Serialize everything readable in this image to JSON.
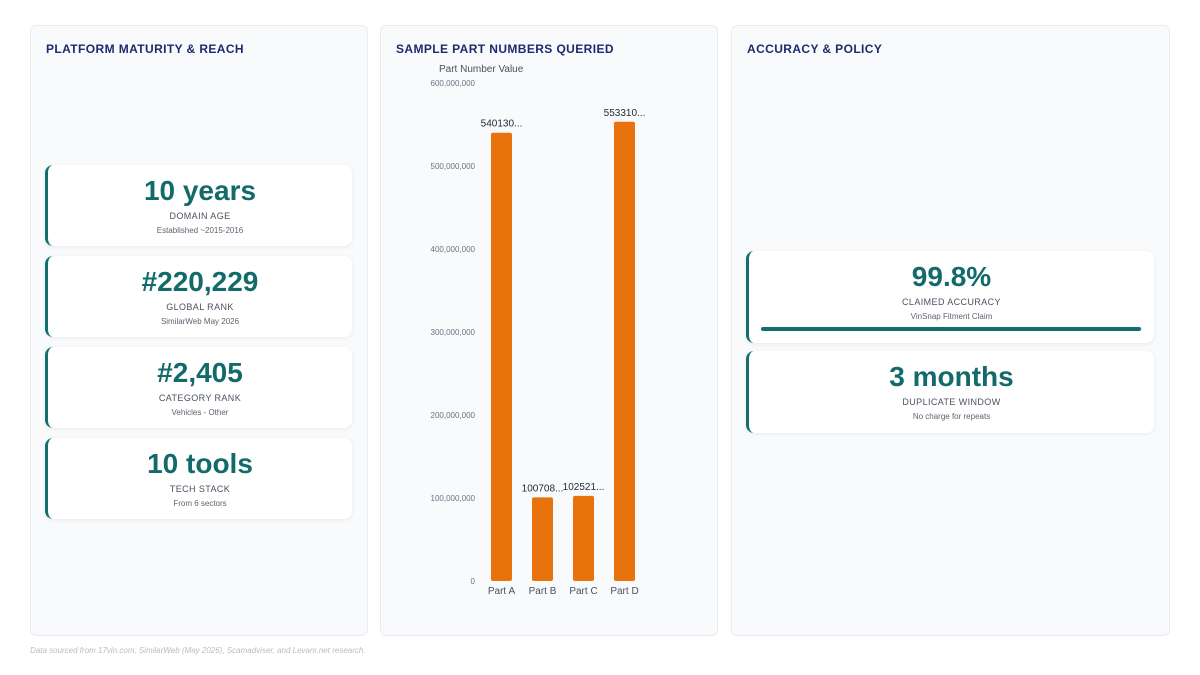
{
  "panels": {
    "maturity": {
      "title": "PLATFORM MATURITY & REACH",
      "cards": [
        {
          "value": "10 years",
          "label": "DOMAIN AGE",
          "sub": "Established ~2015-2016"
        },
        {
          "value": "#220,229",
          "label": "GLOBAL RANK",
          "sub": "SimilarWeb May 2026"
        },
        {
          "value": "#2,405",
          "label": "CATEGORY RANK",
          "sub": "Vehicles - Other"
        },
        {
          "value": "10 tools",
          "label": "TECH STACK",
          "sub": "From 6 sectors"
        }
      ]
    },
    "parts": {
      "title": "SAMPLE PART NUMBERS QUERIED"
    },
    "accuracy": {
      "title": "ACCURACY & POLICY",
      "cards": [
        {
          "value": "99.8%",
          "label": "CLAIMED ACCURACY",
          "sub": "VinSnap Fitment Claim",
          "progress": 0.998
        },
        {
          "value": "3 months",
          "label": "DUPLICATE WINDOW",
          "sub": "No charge for repeats"
        }
      ]
    }
  },
  "chart_data": {
    "type": "bar",
    "title": "",
    "xlabel": "",
    "ylabel": "Part Number Value",
    "categories": [
      "Part A",
      "Part B",
      "Part C",
      "Part D"
    ],
    "values": [
      540130000,
      100708000,
      102521000,
      553310000
    ],
    "value_labels": [
      "540130...",
      "100708...",
      "102521...",
      "553310..."
    ],
    "ylim": [
      0,
      600000000
    ],
    "yticks": [
      0,
      100000000,
      200000000,
      300000000,
      400000000,
      500000000,
      600000000
    ],
    "ytick_labels": [
      "0",
      "100,000,000",
      "200,000,000",
      "300,000,000",
      "400,000,000",
      "500,000,000",
      "600,000,000"
    ],
    "bar_color": "#e8730c",
    "grid": false,
    "legend": "none"
  },
  "footer": "Data sourced from 17vin.com, SimilarWeb (May 2026), Scamadviser, and Levam.net research.",
  "colors": {
    "accent": "#136e6e",
    "title": "#1e2a6e",
    "bar": "#e8730c"
  }
}
